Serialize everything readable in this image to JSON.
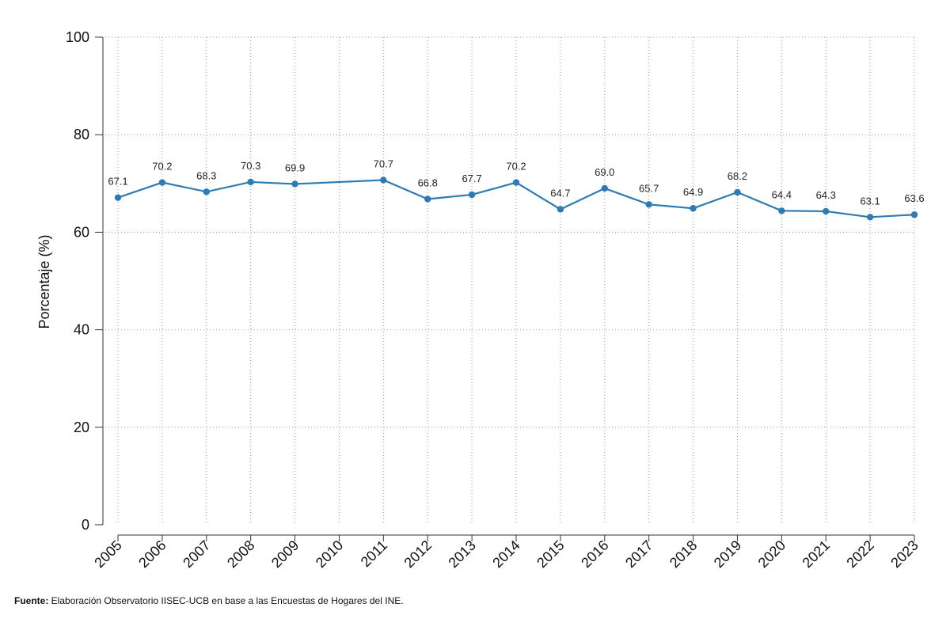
{
  "chart_data": {
    "type": "line",
    "x": [
      "2005",
      "2006",
      "2007",
      "2008",
      "2009",
      "2011",
      "2012",
      "2013",
      "2014",
      "2015",
      "2016",
      "2017",
      "2018",
      "2019",
      "2020",
      "2021",
      "2022",
      "2023"
    ],
    "x_ticks": [
      "2005",
      "2006",
      "2007",
      "2008",
      "2009",
      "2010",
      "2011",
      "2012",
      "2013",
      "2014",
      "2015",
      "2016",
      "2017",
      "2018",
      "2019",
      "2020",
      "2021",
      "2022",
      "2023"
    ],
    "series": [
      {
        "values": [
          67.1,
          70.2,
          68.3,
          70.3,
          69.9,
          70.7,
          66.8,
          67.7,
          70.2,
          64.7,
          69.0,
          65.7,
          64.9,
          68.2,
          64.4,
          64.3,
          63.1,
          63.6
        ],
        "labels": [
          "67.1",
          "70.2",
          "68.3",
          "70.3",
          "69.9",
          "70.7",
          "66.8",
          "67.7",
          "70.2",
          "64.7",
          "69.0",
          "65.7",
          "64.9",
          "68.2",
          "64.4",
          "64.3",
          "63.1",
          "63.6"
        ],
        "color": "#2e7bb4"
      }
    ],
    "ylabel": "Porcentaje (%)",
    "ylim": [
      0,
      100
    ],
    "y_ticks": [
      "0",
      "20",
      "40",
      "60",
      "80",
      "100"
    ],
    "grid": "dotted"
  },
  "footer": {
    "source_label": "Fuente:",
    "source_text": " Elaboración Observatorio IISEC-UCB en base a las Encuestas de Hogares del INE."
  }
}
